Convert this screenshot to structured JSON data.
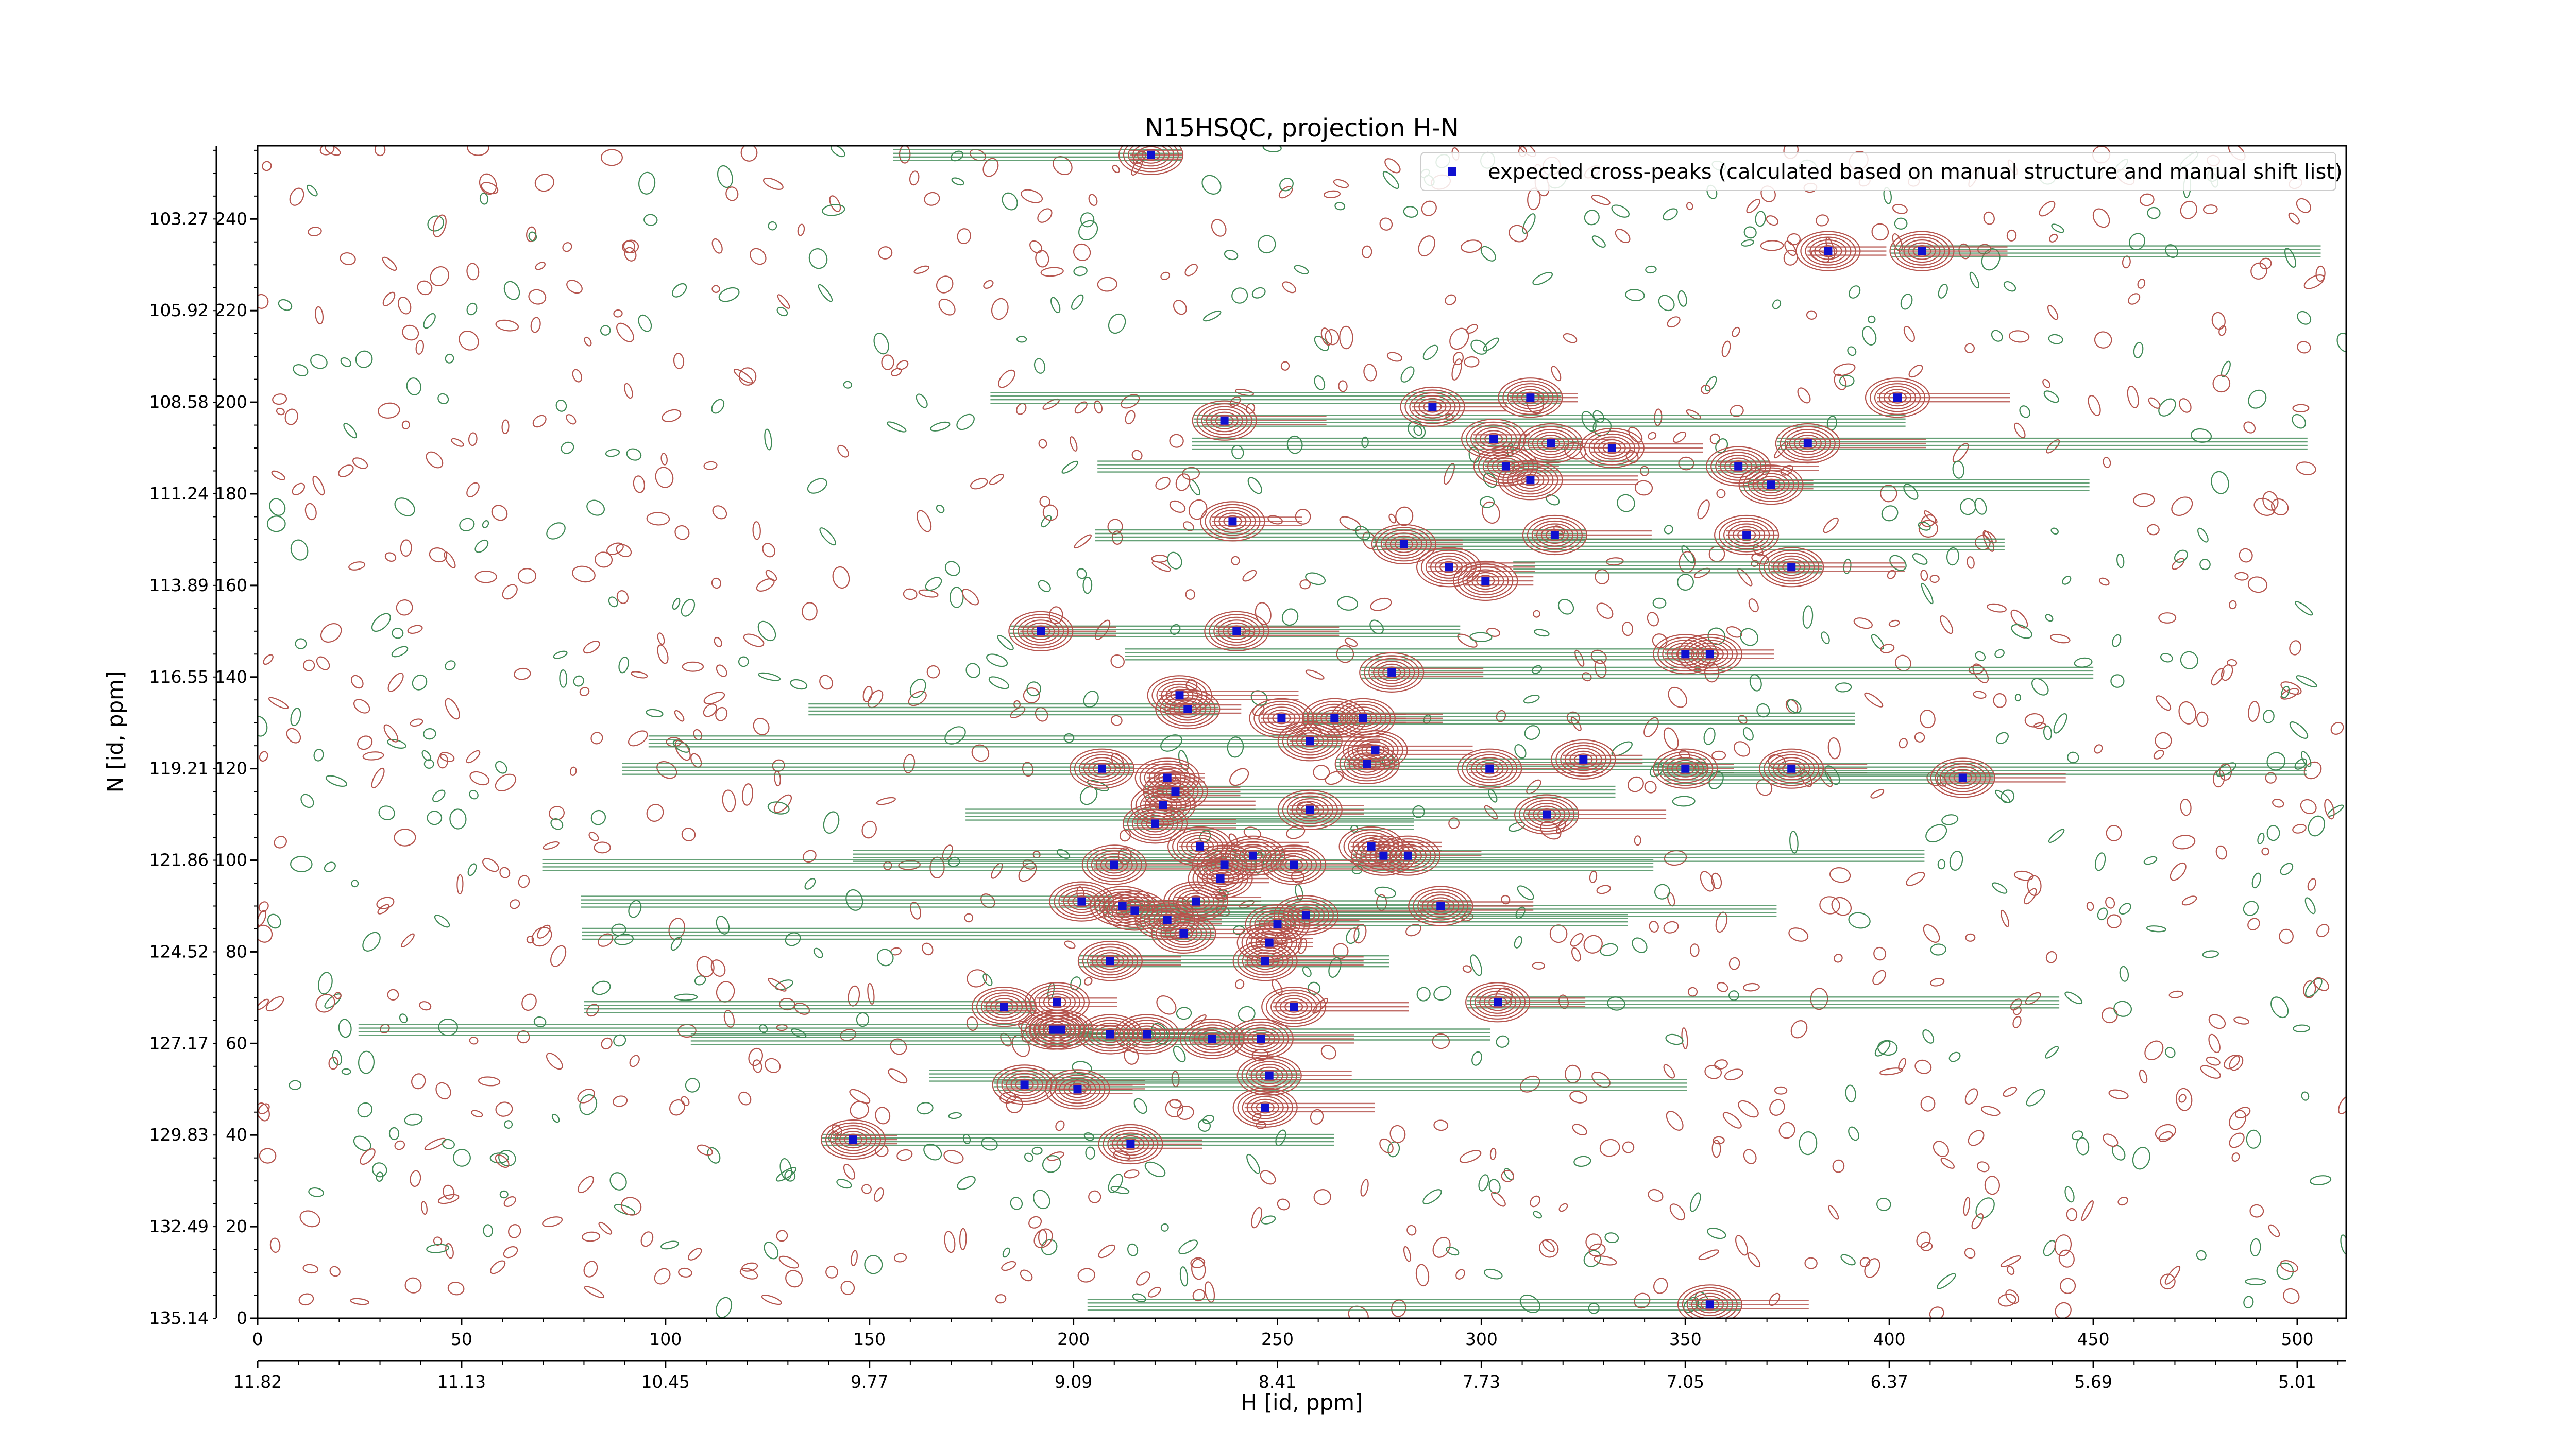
{
  "chart_data": {
    "type": "contour",
    "title": "N15HSQC, projection H-N",
    "xlabel_index": "",
    "xlabel_ppm": "H [id, ppm]",
    "ylabel": "N [id, ppm]",
    "x_index_range": [
      0,
      512
    ],
    "y_index_range": [
      0,
      256
    ],
    "x_index_ticks": [
      "0",
      "50",
      "100",
      "150",
      "200",
      "250",
      "300",
      "350",
      "400",
      "450",
      "500"
    ],
    "x_ppm_ticks": [
      "11.82",
      "11.13",
      "10.45",
      "9.77",
      "9.09",
      "8.41",
      "7.73",
      "7.05",
      "6.37",
      "5.69",
      "5.01"
    ],
    "y_index_ticks": [
      "0",
      "20",
      "40",
      "60",
      "80",
      "100",
      "120",
      "140",
      "160",
      "180",
      "200",
      "220",
      "240"
    ],
    "y_ppm_ticks": [
      "135.14",
      "132.49",
      "129.83",
      "127.17",
      "124.52",
      "121.86",
      "119.21",
      "116.55",
      "113.89",
      "111.24",
      "108.58",
      "105.92",
      "103.27"
    ],
    "legend": {
      "position": "upper-right",
      "entries": [
        "expected cross-peaks (calculated based on manual structure and manual shift list)"
      ]
    },
    "colors": {
      "positive_contours": "#b5544d",
      "negative_contours": "#3f8a55",
      "peak_marker": "#1010d0"
    },
    "peaks": [
      [
        219,
        254
      ],
      [
        385,
        233
      ],
      [
        408,
        233
      ],
      [
        402,
        201
      ],
      [
        312,
        201
      ],
      [
        288,
        199
      ],
      [
        237,
        196
      ],
      [
        303,
        192
      ],
      [
        317,
        191
      ],
      [
        332,
        190
      ],
      [
        380,
        191
      ],
      [
        306,
        186
      ],
      [
        363,
        186
      ],
      [
        312,
        183
      ],
      [
        371,
        182
      ],
      [
        239,
        174
      ],
      [
        318,
        171
      ],
      [
        365,
        171
      ],
      [
        281,
        169
      ],
      [
        292,
        164
      ],
      [
        376,
        164
      ],
      [
        301,
        161
      ],
      [
        192,
        150
      ],
      [
        240,
        150
      ],
      [
        350,
        145
      ],
      [
        356,
        145
      ],
      [
        278,
        141
      ],
      [
        226,
        136
      ],
      [
        228,
        133
      ],
      [
        251,
        131
      ],
      [
        264,
        131
      ],
      [
        271,
        131
      ],
      [
        258,
        126
      ],
      [
        274,
        124
      ],
      [
        272,
        121
      ],
      [
        325,
        122
      ],
      [
        207,
        120
      ],
      [
        302,
        120
      ],
      [
        350,
        120
      ],
      [
        376,
        120
      ],
      [
        418,
        118
      ],
      [
        223,
        118
      ],
      [
        225,
        115
      ],
      [
        222,
        112
      ],
      [
        316,
        110
      ],
      [
        258,
        111
      ],
      [
        220,
        108
      ],
      [
        231,
        103
      ],
      [
        244,
        101
      ],
      [
        273,
        103
      ],
      [
        276,
        101
      ],
      [
        282,
        101
      ],
      [
        237,
        99
      ],
      [
        210,
        99
      ],
      [
        254,
        99
      ],
      [
        236,
        96
      ],
      [
        202,
        91
      ],
      [
        212,
        90
      ],
      [
        215,
        89
      ],
      [
        230,
        91
      ],
      [
        290,
        90
      ],
      [
        257,
        88
      ],
      [
        223,
        87
      ],
      [
        250,
        86
      ],
      [
        227,
        84
      ],
      [
        248,
        82
      ],
      [
        209,
        78
      ],
      [
        247,
        78
      ],
      [
        183,
        68
      ],
      [
        196,
        69
      ],
      [
        304,
        69
      ],
      [
        254,
        68
      ],
      [
        197,
        63
      ],
      [
        195,
        63
      ],
      [
        209,
        62
      ],
      [
        218,
        62
      ],
      [
        234,
        61
      ],
      [
        246,
        61
      ],
      [
        188,
        51
      ],
      [
        201,
        50
      ],
      [
        248,
        53
      ],
      [
        247,
        46
      ],
      [
        146,
        39
      ],
      [
        214,
        38
      ],
      [
        356,
        3
      ]
    ]
  }
}
